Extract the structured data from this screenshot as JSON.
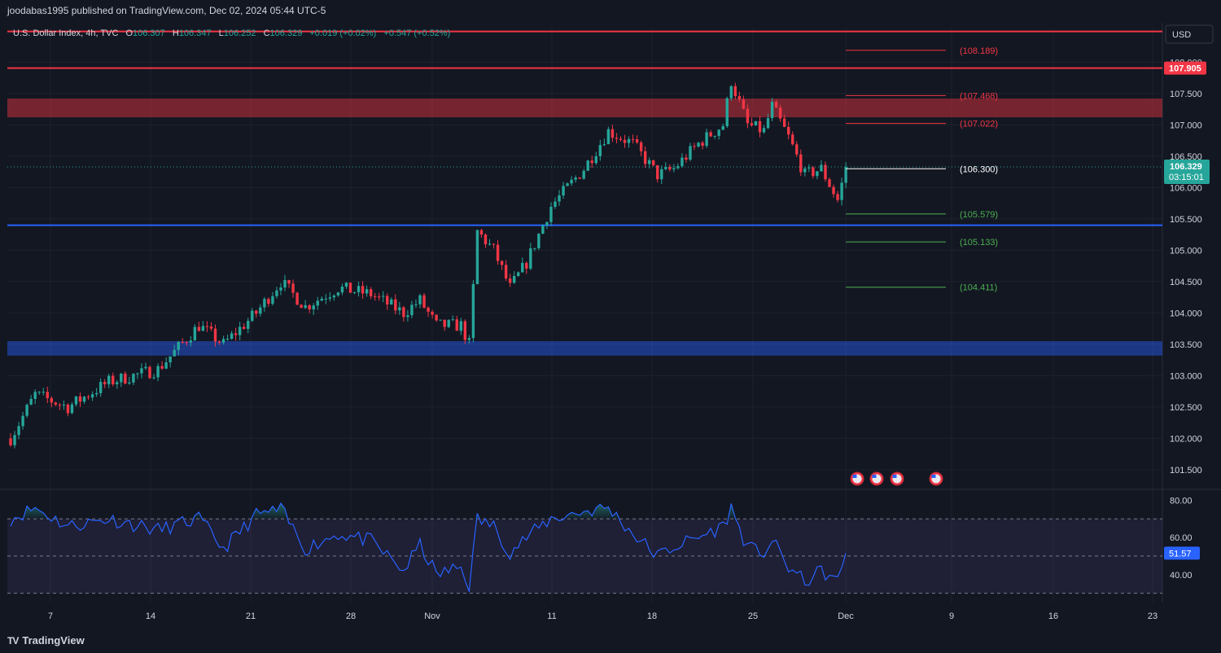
{
  "header": {
    "published": "joodabas1995 published on TradingView.com, Dec 02, 2024 05:44 UTC-5",
    "symbol": "U.S. Dollar Index, 4h, TVC",
    "ohlc": {
      "o_label": "O",
      "o": "106.307",
      "h_label": "H",
      "h": "106.347",
      "l_label": "L",
      "l": "106.252",
      "c_label": "C",
      "c": "106.329",
      "change": "+0.019 (+0.02%)",
      "change2": "+0.547 (+0.52%)"
    },
    "currency": "USD"
  },
  "chart_data": {
    "type": "candlestick",
    "timeframe": "4h",
    "x_ticks": [
      "7",
      "14",
      "21",
      "28",
      "Nov",
      "11",
      "18",
      "25",
      "Dec",
      "9",
      "16",
      "23"
    ],
    "y_ticks": [
      "108.000",
      "107.500",
      "107.000",
      "106.500",
      "106.000",
      "105.500",
      "105.000",
      "104.500",
      "104.000",
      "103.500",
      "103.000",
      "102.500",
      "102.000",
      "101.500"
    ],
    "ylim": [
      101.2,
      108.55
    ],
    "last_price": "106.329",
    "countdown": "03:15:01",
    "horizontal_lines": [
      {
        "price": 108.49,
        "color": "#f23645",
        "label": ""
      },
      {
        "price": 107.905,
        "color": "#f23645",
        "label": "107.905"
      },
      {
        "price": 105.4,
        "color": "#2962ff",
        "label": ""
      }
    ],
    "zones": [
      {
        "from": 107.12,
        "to": 107.42,
        "color": "#f23645"
      },
      {
        "from": 103.32,
        "to": 103.55,
        "color": "#2962ff"
      }
    ],
    "fib_levels": [
      {
        "price": 108.189,
        "label": "(108.189)",
        "color": "#f23645"
      },
      {
        "price": 107.468,
        "label": "(107.468)",
        "color": "#f23645"
      },
      {
        "price": 107.022,
        "label": "(107.022)",
        "color": "#f23645"
      },
      {
        "price": 106.3,
        "label": "(106.300)",
        "color": "#ffffff"
      },
      {
        "price": 105.579,
        "label": "(105.579)",
        "color": "#4caf50"
      },
      {
        "price": 105.133,
        "label": "(105.133)",
        "color": "#4caf50"
      },
      {
        "price": 104.411,
        "label": "(104.411)",
        "color": "#4caf50"
      }
    ],
    "anchors": [
      {
        "x": 0,
        "price": 102.0
      },
      {
        "x": 6,
        "price": 102.7
      },
      {
        "x": 14,
        "price": 102.5
      },
      {
        "x": 24,
        "price": 102.9
      },
      {
        "x": 36,
        "price": 103.1
      },
      {
        "x": 46,
        "price": 103.8
      },
      {
        "x": 52,
        "price": 103.5
      },
      {
        "x": 60,
        "price": 104.0
      },
      {
        "x": 66,
        "price": 104.5
      },
      {
        "x": 72,
        "price": 104.1
      },
      {
        "x": 80,
        "price": 104.4
      },
      {
        "x": 88,
        "price": 104.3
      },
      {
        "x": 96,
        "price": 104.0
      },
      {
        "x": 100,
        "price": 104.2
      },
      {
        "x": 104,
        "price": 103.8
      },
      {
        "x": 110,
        "price": 103.8
      },
      {
        "x": 112,
        "price": 103.5
      },
      {
        "x": 114,
        "price": 105.3
      },
      {
        "x": 118,
        "price": 105.0
      },
      {
        "x": 122,
        "price": 104.4
      },
      {
        "x": 126,
        "price": 104.8
      },
      {
        "x": 132,
        "price": 105.7
      },
      {
        "x": 140,
        "price": 106.3
      },
      {
        "x": 146,
        "price": 106.9
      },
      {
        "x": 152,
        "price": 106.7
      },
      {
        "x": 158,
        "price": 106.2
      },
      {
        "x": 162,
        "price": 106.3
      },
      {
        "x": 168,
        "price": 106.7
      },
      {
        "x": 174,
        "price": 107.0
      },
      {
        "x": 176,
        "price": 107.7
      },
      {
        "x": 180,
        "price": 107.0
      },
      {
        "x": 184,
        "price": 106.9
      },
      {
        "x": 186,
        "price": 107.3
      },
      {
        "x": 190,
        "price": 106.8
      },
      {
        "x": 194,
        "price": 106.2
      },
      {
        "x": 198,
        "price": 106.3
      },
      {
        "x": 202,
        "price": 105.8
      },
      {
        "x": 204,
        "price": 106.3
      }
    ],
    "rsi": {
      "current": "51.57",
      "y_ticks": [
        "80.00",
        "60.00",
        "40.00"
      ],
      "band_upper": 70,
      "band_lower": 30,
      "middle": 50,
      "anchors": [
        {
          "x": 0,
          "price": 70
        },
        {
          "x": 6,
          "price": 76
        },
        {
          "x": 14,
          "price": 66
        },
        {
          "x": 24,
          "price": 70
        },
        {
          "x": 36,
          "price": 64
        },
        {
          "x": 46,
          "price": 70
        },
        {
          "x": 52,
          "price": 54
        },
        {
          "x": 60,
          "price": 72
        },
        {
          "x": 66,
          "price": 75
        },
        {
          "x": 72,
          "price": 54
        },
        {
          "x": 80,
          "price": 62
        },
        {
          "x": 88,
          "price": 58
        },
        {
          "x": 96,
          "price": 42
        },
        {
          "x": 100,
          "price": 56
        },
        {
          "x": 104,
          "price": 40
        },
        {
          "x": 110,
          "price": 44
        },
        {
          "x": 112,
          "price": 34
        },
        {
          "x": 114,
          "price": 70
        },
        {
          "x": 118,
          "price": 66
        },
        {
          "x": 122,
          "price": 52
        },
        {
          "x": 126,
          "price": 60
        },
        {
          "x": 132,
          "price": 70
        },
        {
          "x": 140,
          "price": 74
        },
        {
          "x": 146,
          "price": 76
        },
        {
          "x": 152,
          "price": 62
        },
        {
          "x": 158,
          "price": 50
        },
        {
          "x": 162,
          "price": 55
        },
        {
          "x": 168,
          "price": 60
        },
        {
          "x": 174,
          "price": 66
        },
        {
          "x": 176,
          "price": 76
        },
        {
          "x": 180,
          "price": 54
        },
        {
          "x": 184,
          "price": 52
        },
        {
          "x": 186,
          "price": 58
        },
        {
          "x": 190,
          "price": 44
        },
        {
          "x": 194,
          "price": 36
        },
        {
          "x": 198,
          "price": 42
        },
        {
          "x": 202,
          "price": 36
        },
        {
          "x": 204,
          "price": 51.57
        }
      ]
    },
    "event_icons": 4
  },
  "footer": {
    "brand": "TradingView",
    "brand_mark": "TV"
  },
  "colors": {
    "up": "#26a69a",
    "down": "#f23645",
    "rsi_line": "#2962ff",
    "background": "#131722"
  }
}
